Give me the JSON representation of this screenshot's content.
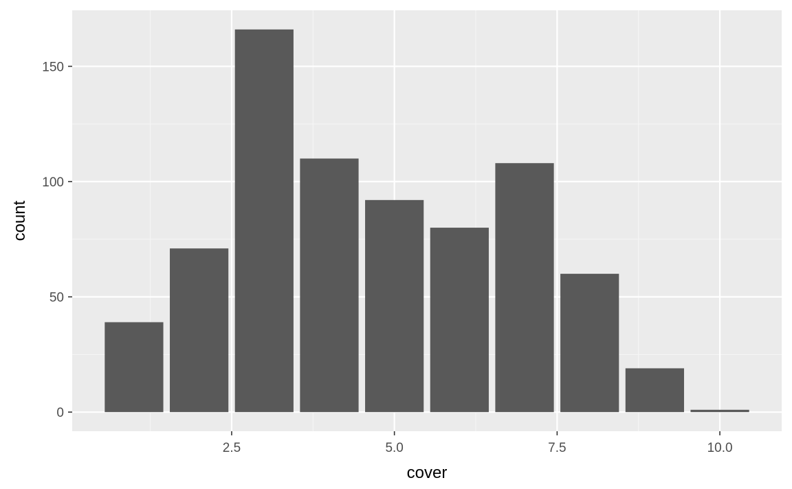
{
  "colors": {
    "panel_background": "#ebebeb",
    "grid_major": "#ffffff",
    "grid_minor": "#f5f5f5",
    "bar_fill": "#595959",
    "tick_color": "#333333"
  },
  "chart_data": {
    "type": "bar",
    "xlabel": "cover",
    "ylabel": "count",
    "x": [
      1,
      2,
      3,
      4,
      5,
      6,
      7,
      8,
      9,
      10
    ],
    "values": [
      39,
      71,
      166,
      110,
      92,
      80,
      108,
      60,
      19,
      1
    ],
    "bar_width": 0.9,
    "xlim": [
      0.05,
      10.95
    ],
    "ylim": [
      -8.3,
      174.3
    ],
    "x_ticks": [
      2.5,
      5.0,
      7.5,
      10.0
    ],
    "x_tick_labels": [
      "2.5",
      "5.0",
      "7.5",
      "10.0"
    ],
    "y_ticks": [
      0,
      50,
      100,
      150
    ],
    "y_tick_labels": [
      "0",
      "50",
      "100",
      "150"
    ],
    "grid": true,
    "legend": "none"
  }
}
